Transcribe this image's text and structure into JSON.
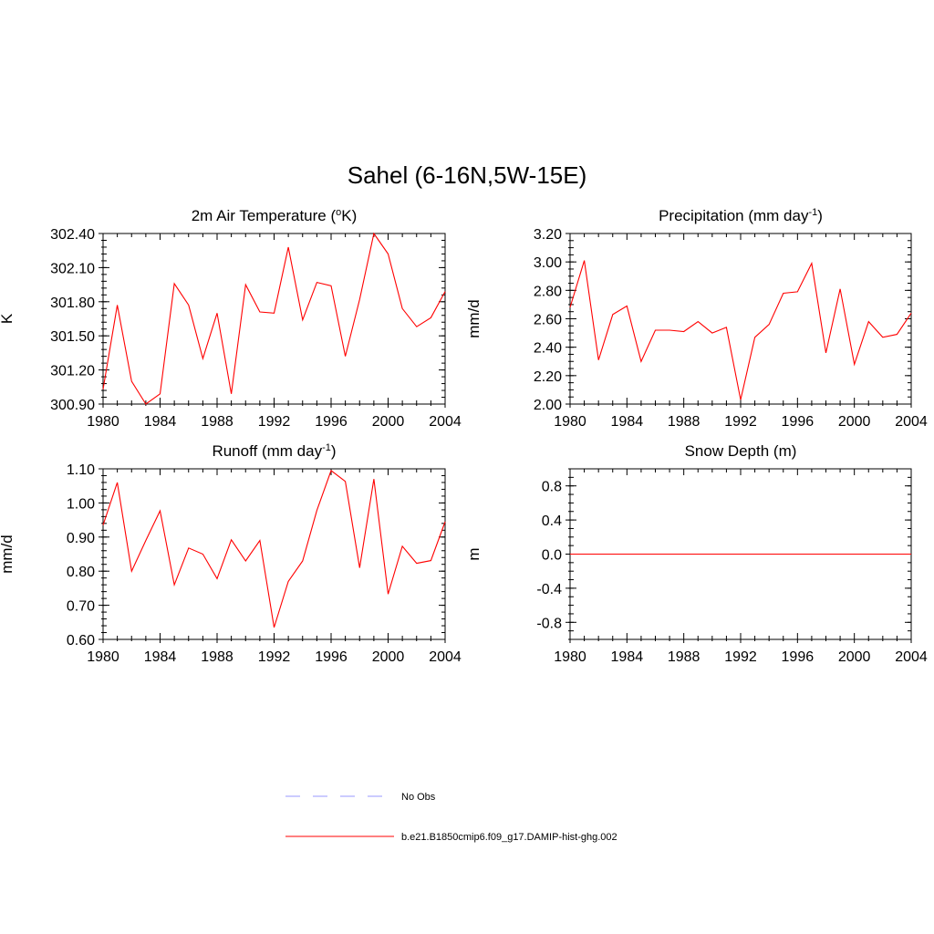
{
  "figure": {
    "title": "Sahel (6-16N,5W-15E)"
  },
  "legend": {
    "items": [
      {
        "label": "No Obs",
        "color": "#9999ff",
        "dash": true
      },
      {
        "label": "b.e21.B1850cmip6.f09_g17.DAMIP-hist-ghg.002",
        "color": "#ff0000",
        "dash": false
      }
    ]
  },
  "colors": {
    "series": "#ff0000",
    "frame": "#000000"
  },
  "chart_data": [
    {
      "type": "line",
      "title": "2m Air Temperature (",
      "title_sup": "o",
      "title_end": "K)",
      "ylabel": "K",
      "xlim": [
        1980,
        2004
      ],
      "ylim": [
        300.9,
        302.4
      ],
      "xticks": [
        1980,
        1984,
        1988,
        1992,
        1996,
        2000,
        2004
      ],
      "xtick_labels": [
        "1980",
        "1984",
        "1988",
        "1992",
        "1996",
        "2000",
        "2004"
      ],
      "yticks": [
        300.9,
        301.2,
        301.5,
        301.8,
        302.1,
        302.4
      ],
      "ytick_labels": [
        "300.90",
        "301.20",
        "301.50",
        "301.80",
        "302.10",
        "302.40"
      ],
      "yminor": 0.06,
      "x": [
        1980,
        1981,
        1982,
        1983,
        1984,
        1985,
        1986,
        1987,
        1988,
        1989,
        1990,
        1991,
        1992,
        1993,
        1994,
        1995,
        1996,
        1997,
        1998,
        1999,
        2000,
        2001,
        2002,
        2003,
        2004
      ],
      "series": [
        {
          "values": [
            301.03,
            301.77,
            301.1,
            300.9,
            300.99,
            301.96,
            301.77,
            301.3,
            301.7,
            300.99,
            301.95,
            301.71,
            301.7,
            302.28,
            301.64,
            301.97,
            301.94,
            301.32,
            301.82,
            302.4,
            302.22,
            301.74,
            301.58,
            301.66,
            301.89
          ]
        }
      ]
    },
    {
      "type": "line",
      "title": "Precipitation (mm day",
      "title_sup": "-1",
      "title_end": ")",
      "ylabel": "mm/d",
      "xlim": [
        1980,
        2004
      ],
      "ylim": [
        2.0,
        3.2
      ],
      "xticks": [
        1980,
        1984,
        1988,
        1992,
        1996,
        2000,
        2004
      ],
      "xtick_labels": [
        "1980",
        "1984",
        "1988",
        "1992",
        "1996",
        "2000",
        "2004"
      ],
      "yticks": [
        2.0,
        2.2,
        2.4,
        2.6,
        2.8,
        3.0,
        3.2
      ],
      "ytick_labels": [
        "2.00",
        "2.20",
        "2.40",
        "2.60",
        "2.80",
        "3.00",
        "3.20"
      ],
      "yminor": 0.05,
      "x": [
        1980,
        1981,
        1982,
        1983,
        1984,
        1985,
        1986,
        1987,
        1988,
        1989,
        1990,
        1991,
        1992,
        1993,
        1994,
        1995,
        1996,
        1997,
        1998,
        1999,
        2000,
        2001,
        2002,
        2003,
        2004
      ],
      "series": [
        {
          "values": [
            2.68,
            3.01,
            2.31,
            2.63,
            2.69,
            2.3,
            2.52,
            2.52,
            2.51,
            2.58,
            2.5,
            2.54,
            2.03,
            2.47,
            2.56,
            2.78,
            2.79,
            2.99,
            2.36,
            2.81,
            2.28,
            2.58,
            2.47,
            2.49,
            2.64
          ]
        }
      ]
    },
    {
      "type": "line",
      "title": "Runoff (mm day",
      "title_sup": "-1",
      "title_end": ")",
      "ylabel": "mm/d",
      "xlim": [
        1980,
        2004
      ],
      "ylim": [
        0.6,
        1.1
      ],
      "xticks": [
        1980,
        1984,
        1988,
        1992,
        1996,
        2000,
        2004
      ],
      "xtick_labels": [
        "1980",
        "1984",
        "1988",
        "1992",
        "1996",
        "2000",
        "2004"
      ],
      "yticks": [
        0.6,
        0.7,
        0.8,
        0.9,
        1.0,
        1.1
      ],
      "ytick_labels": [
        "0.60",
        "0.70",
        "0.80",
        "0.90",
        "1.00",
        "1.10"
      ],
      "yminor": 0.02,
      "x": [
        1980,
        1981,
        1982,
        1983,
        1984,
        1985,
        1986,
        1987,
        1988,
        1989,
        1990,
        1991,
        1992,
        1993,
        1994,
        1995,
        1996,
        1997,
        1998,
        1999,
        2000,
        2001,
        2002,
        2003,
        2004
      ],
      "series": [
        {
          "values": [
            0.935,
            1.06,
            0.8,
            0.89,
            0.977,
            0.76,
            0.868,
            0.85,
            0.778,
            0.892,
            0.83,
            0.89,
            0.635,
            0.77,
            0.83,
            0.978,
            1.095,
            1.063,
            0.81,
            1.07,
            0.733,
            0.873,
            0.823,
            0.831,
            0.945
          ]
        }
      ]
    },
    {
      "type": "line",
      "title": "Snow Depth (m)",
      "title_sup": "",
      "title_end": "",
      "ylabel": "m",
      "xlim": [
        1980,
        2004
      ],
      "ylim": [
        -1.0,
        1.0
      ],
      "xticks": [
        1980,
        1984,
        1988,
        1992,
        1996,
        2000,
        2004
      ],
      "xtick_labels": [
        "1980",
        "1984",
        "1988",
        "1992",
        "1996",
        "2000",
        "2004"
      ],
      "yticks": [
        -0.8,
        -0.4,
        0.0,
        0.4,
        0.8
      ],
      "ytick_labels": [
        "-0.8",
        "-0.4",
        "0.0",
        "0.4",
        "0.8"
      ],
      "yminor": 0.1,
      "x": [
        1980,
        1981,
        1982,
        1983,
        1984,
        1985,
        1986,
        1987,
        1988,
        1989,
        1990,
        1991,
        1992,
        1993,
        1994,
        1995,
        1996,
        1997,
        1998,
        1999,
        2000,
        2001,
        2002,
        2003,
        2004
      ],
      "series": [
        {
          "values": [
            0,
            0,
            0,
            0,
            0,
            0,
            0,
            0,
            0,
            0,
            0,
            0,
            0,
            0,
            0,
            0,
            0,
            0,
            0,
            0,
            0,
            0,
            0,
            0,
            0
          ]
        }
      ]
    }
  ]
}
